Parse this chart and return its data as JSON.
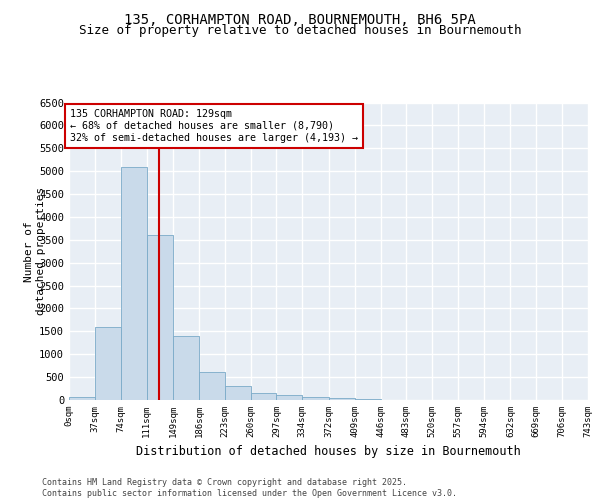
{
  "title_line1": "135, CORHAMPTON ROAD, BOURNEMOUTH, BH6 5PA",
  "title_line2": "Size of property relative to detached houses in Bournemouth",
  "xlabel": "Distribution of detached houses by size in Bournemouth",
  "ylabel": "Number of\ndetached properties",
  "footnote": "Contains HM Land Registry data © Crown copyright and database right 2025.\nContains public sector information licensed under the Open Government Licence v3.0.",
  "bin_edges": [
    0,
    37,
    74,
    111,
    149,
    186,
    223,
    260,
    297,
    334,
    372,
    409,
    446,
    483,
    520,
    557,
    594,
    632,
    669,
    706,
    743
  ],
  "bar_heights": [
    60,
    1600,
    5100,
    3600,
    1400,
    620,
    310,
    160,
    110,
    60,
    40,
    30,
    5,
    0,
    0,
    0,
    0,
    0,
    0,
    0
  ],
  "bar_color": "#c9daea",
  "bar_edge_color": "#7aaac8",
  "property_size": 129,
  "vline_color": "#cc0000",
  "annotation_text": "135 CORHAMPTON ROAD: 129sqm\n← 68% of detached houses are smaller (8,790)\n32% of semi-detached houses are larger (4,193) →",
  "annotation_box_color": "#cc0000",
  "ylim": [
    0,
    6500
  ],
  "yticks": [
    0,
    500,
    1000,
    1500,
    2000,
    2500,
    3000,
    3500,
    4000,
    4500,
    5000,
    5500,
    6000,
    6500
  ],
  "background_color": "#e8eef5",
  "grid_color": "#ffffff",
  "title_fontsize": 10,
  "subtitle_fontsize": 9
}
